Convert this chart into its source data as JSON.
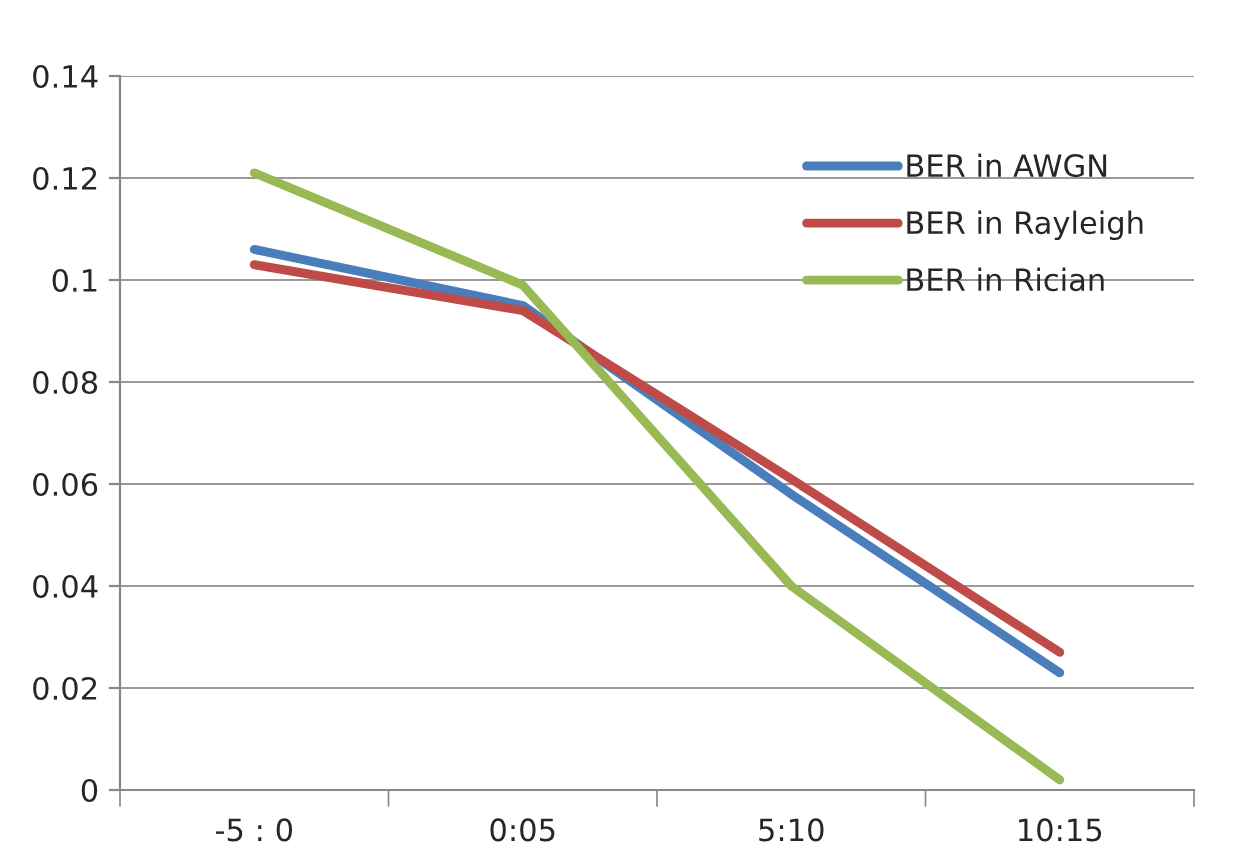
{
  "chart_data": {
    "type": "line",
    "categories": [
      "-5 : 0",
      "0:05",
      "5:10",
      "10:15"
    ],
    "series": [
      {
        "name": "BER in AWGN",
        "color": "#4a7ebb",
        "values": [
          0.106,
          0.095,
          0.058,
          0.023
        ]
      },
      {
        "name": "BER in Rayleigh",
        "color": "#be4b48",
        "values": [
          0.103,
          0.094,
          0.061,
          0.027
        ]
      },
      {
        "name": "BER in Rician",
        "color": "#98b954",
        "values": [
          0.121,
          0.099,
          0.04,
          0.002
        ]
      }
    ],
    "ylim": [
      0,
      0.14
    ],
    "yticks": [
      0,
      0.02,
      0.04,
      0.06,
      0.08,
      0.1,
      0.12,
      0.14
    ],
    "grid": "y",
    "legend": "top right",
    "marker": "none",
    "line_style": "solid"
  }
}
